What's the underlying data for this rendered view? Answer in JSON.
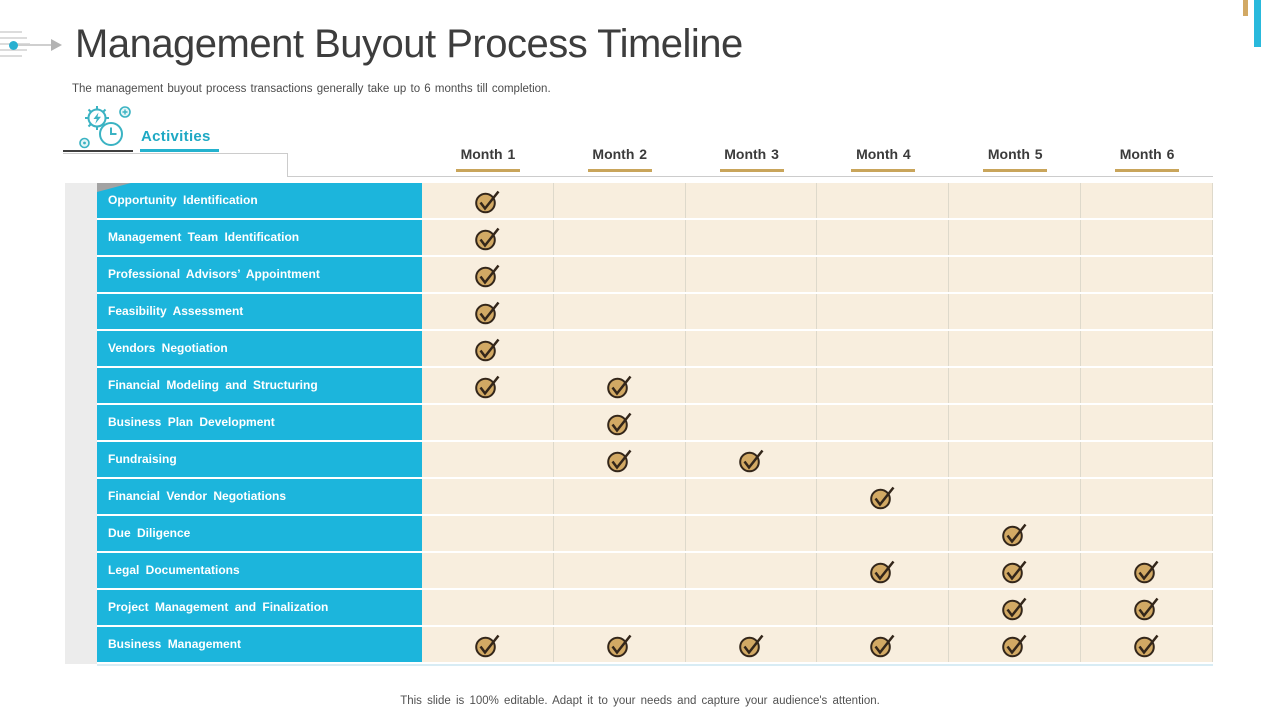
{
  "header": {
    "title": "Management Buyout Process Timeline",
    "subtitle": "The management buyout process transactions generally take up to 6 months till completion."
  },
  "section": {
    "label": "Activities"
  },
  "table": {
    "columns": [
      "Month 1",
      "Month 2",
      "Month 3",
      "Month 4",
      "Month 5",
      "Month 6"
    ],
    "rows": [
      {
        "label": "Opportunity Identification",
        "checks": [
          1
        ]
      },
      {
        "label": "Management Team Identification",
        "checks": [
          1
        ]
      },
      {
        "label": "Professional Advisors’ Appointment",
        "checks": [
          1
        ]
      },
      {
        "label": "Feasibility Assessment",
        "checks": [
          1
        ]
      },
      {
        "label": "Vendors Negotiation",
        "checks": [
          1
        ]
      },
      {
        "label": "Financial Modeling and Structuring",
        "checks": [
          1,
          2
        ]
      },
      {
        "label": "Business Plan Development",
        "checks": [
          2
        ]
      },
      {
        "label": "Fundraising",
        "checks": [
          2,
          3
        ]
      },
      {
        "label": "Financial Vendor Negotiations",
        "checks": [
          4
        ]
      },
      {
        "label": "Due Diligence",
        "checks": [
          5
        ]
      },
      {
        "label": "Legal Documentations",
        "checks": [
          4,
          5,
          6
        ]
      },
      {
        "label": "Project Management and Finalization",
        "checks": [
          5,
          6
        ]
      },
      {
        "label": "Business Management",
        "checks": [
          1,
          2,
          3,
          4,
          5,
          6
        ]
      }
    ]
  },
  "chart_data": {
    "type": "table",
    "title": "Management Buyout Process Timeline",
    "categories": [
      "Month 1",
      "Month 2",
      "Month 3",
      "Month 4",
      "Month 5",
      "Month 6"
    ],
    "series": [
      {
        "name": "Opportunity Identification",
        "values": [
          1,
          0,
          0,
          0,
          0,
          0
        ]
      },
      {
        "name": "Management Team Identification",
        "values": [
          1,
          0,
          0,
          0,
          0,
          0
        ]
      },
      {
        "name": "Professional Advisors’ Appointment",
        "values": [
          1,
          0,
          0,
          0,
          0,
          0
        ]
      },
      {
        "name": "Feasibility Assessment",
        "values": [
          1,
          0,
          0,
          0,
          0,
          0
        ]
      },
      {
        "name": "Vendors Negotiation",
        "values": [
          1,
          0,
          0,
          0,
          0,
          0
        ]
      },
      {
        "name": "Financial Modeling and Structuring",
        "values": [
          1,
          1,
          0,
          0,
          0,
          0
        ]
      },
      {
        "name": "Business Plan Development",
        "values": [
          0,
          1,
          0,
          0,
          0,
          0
        ]
      },
      {
        "name": "Fundraising",
        "values": [
          0,
          1,
          1,
          0,
          0,
          0
        ]
      },
      {
        "name": "Financial Vendor Negotiations",
        "values": [
          0,
          0,
          0,
          1,
          0,
          0
        ]
      },
      {
        "name": "Due Diligence",
        "values": [
          0,
          0,
          0,
          0,
          1,
          0
        ]
      },
      {
        "name": "Legal Documentations",
        "values": [
          0,
          0,
          0,
          1,
          1,
          1
        ]
      },
      {
        "name": "Project Management and Finalization",
        "values": [
          0,
          0,
          0,
          0,
          1,
          1
        ]
      },
      {
        "name": "Business Management",
        "values": [
          1,
          1,
          1,
          1,
          1,
          1
        ]
      }
    ]
  },
  "footer": {
    "note": "This slide is 100% editable. Adapt it to your needs and capture your audience's attention."
  },
  "colors": {
    "accent_cyan": "#1CB5DC",
    "accent_teal": "#1EA9C4",
    "accent_gold": "#C9A55B",
    "cell_cream": "#F8EEDE",
    "check_fill": "#D2A964",
    "check_stroke": "#33261A",
    "title_gray": "#3D3D3D"
  },
  "icons": {
    "section_icon": "gear-clock-icon",
    "check_icon": "check-circle-icon"
  }
}
